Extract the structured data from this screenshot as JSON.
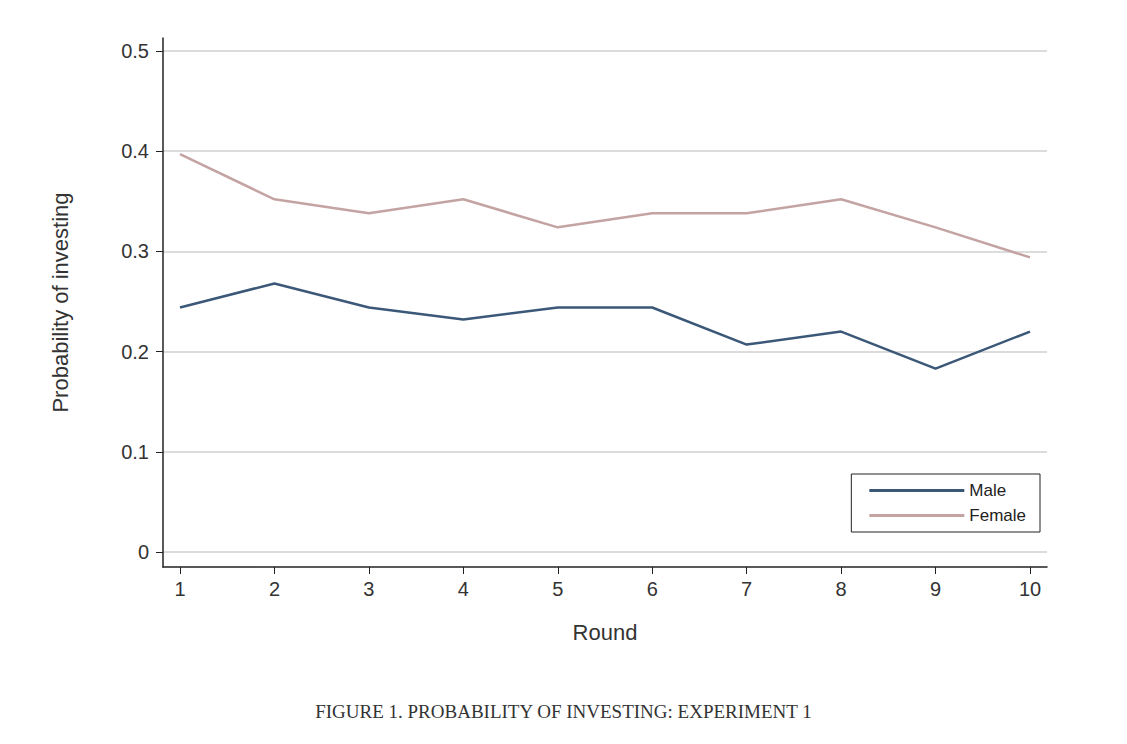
{
  "chart_data": {
    "type": "line",
    "title": "FIGURE 1. PROBABILITY OF INVESTING: EXPERIMENT 1",
    "x_label": "Round",
    "y_label": "Probability of investing",
    "x": [
      1,
      2,
      3,
      4,
      5,
      6,
      7,
      8,
      9,
      10
    ],
    "series": [
      {
        "name": "Male",
        "color": "#3b5878",
        "values": [
          0.244,
          0.268,
          0.244,
          0.232,
          0.244,
          0.244,
          0.207,
          0.22,
          0.183,
          0.22
        ]
      },
      {
        "name": "Female",
        "color": "#c4a3a3",
        "values": [
          0.397,
          0.352,
          0.338,
          0.352,
          0.324,
          0.338,
          0.338,
          0.352,
          0.324,
          0.294
        ]
      }
    ],
    "xlim": [
      0.82,
      10.18
    ],
    "xticks": [
      1,
      2,
      3,
      4,
      5,
      6,
      7,
      8,
      9,
      10
    ],
    "ylim": [
      -0.015,
      0.513
    ],
    "yticks": [
      0,
      0.1,
      0.2,
      0.3,
      0.4,
      0.5
    ],
    "grid": true,
    "legend": "lower right"
  }
}
